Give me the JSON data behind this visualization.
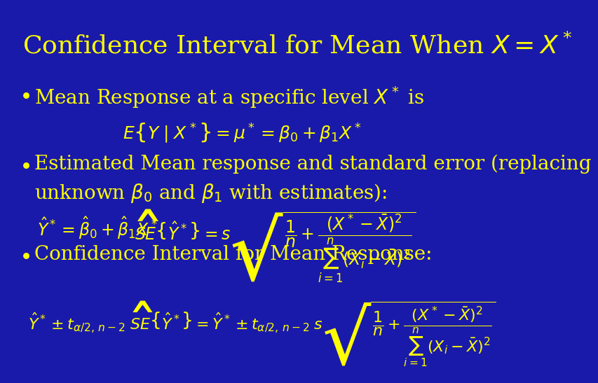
{
  "background_color": "#1a1aaa",
  "title": "Confidence Interval for Mean When $X = X^*$",
  "title_color": "#ffff00",
  "title_fontsize": 26,
  "text_color": "#ffff00",
  "bullet_fontsize": 20,
  "formula_fontsize": 18,
  "bullet1": "Mean Response at a specific level $X^*$ is",
  "formula1": "$E\\left\\{Y \\mid X^*\\right\\} = \\mu^* = \\beta_0 + \\beta_1 X^*$",
  "bullet2": "Estimated Mean response and standard error (replacing\nunknown $\\beta_0$ and $\\beta_1$ with estimates):",
  "formula2a": "$\\hat{Y}^* = \\hat{\\beta}_0 + \\hat{\\beta}_1 X^*$",
  "formula2b": "$\\widehat{SE}\\left\\{\\hat{Y}^*\\right\\} = s\\sqrt{\\dfrac{1}{n} + \\dfrac{(X^* - \\bar{X})^2}{\\sum_{i=1}^{n}(X_i - \\bar{X})^2}}$",
  "bullet3": "Confidence Interval for Mean Response:",
  "formula3": "$\\hat{Y}^* \\pm t_{\\alpha/2,\\, n-2}\\; \\widehat{SE}\\left\\{\\hat{Y}^*\\right\\} = \\hat{Y}^* \\pm t_{\\alpha/2,\\, n-2}\\; s\\sqrt{\\dfrac{1}{n} + \\dfrac{(X^* - \\bar{X})^2}{\\sum_{i=1}^{n}(X_i - \\bar{X})^2}}$"
}
